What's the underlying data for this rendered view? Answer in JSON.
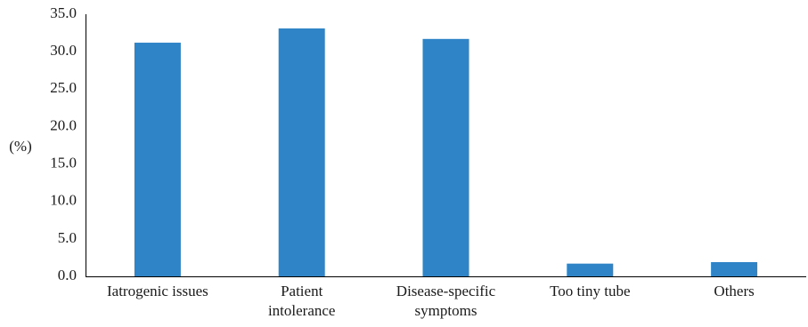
{
  "chart_data": {
    "type": "bar",
    "title": "",
    "xlabel": "",
    "ylabel": "(%)",
    "ylim": [
      0,
      35
    ],
    "ytick_step": 5,
    "ytick_labels": [
      "0.0",
      "5.0",
      "10.0",
      "15.0",
      "20.0",
      "25.0",
      "30.0",
      "35.0"
    ],
    "categories": [
      [
        "Iatrogenic issues"
      ],
      [
        "Patient",
        "intolerance"
      ],
      [
        "Disease-specific",
        "symptoms"
      ],
      [
        "Too tiny tube"
      ],
      [
        "Others"
      ]
    ],
    "values": [
      31.2,
      33.1,
      31.7,
      1.7,
      1.9
    ],
    "bar_color": "#2e84c6",
    "grid": false,
    "legend": "none"
  }
}
